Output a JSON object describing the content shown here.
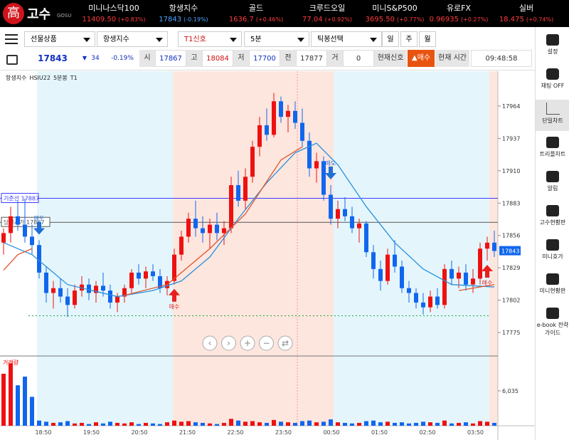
{
  "header": {
    "logo_mark": "高",
    "logo_text": "고수",
    "logo_sub": "GOSU",
    "tickers": [
      {
        "name": "미니나스닥100",
        "price": "11409.50",
        "change": "(+0.83%)"
      },
      {
        "name": "항생지수",
        "price": "17843",
        "change": "(-0.19%)"
      },
      {
        "name": "골드",
        "price": "1636.7",
        "change": "(+0.46%)"
      },
      {
        "name": "크루드오일",
        "price": "77.04",
        "change": "(+0.92%)"
      },
      {
        "name": "미니S&P500",
        "price": "3695.50",
        "change": "(+0.77%)"
      },
      {
        "name": "유로FX",
        "price": "0.96935",
        "change": "(+0.27%)"
      },
      {
        "name": "실버",
        "price": "18.475",
        "change": "(+0.74%)"
      }
    ]
  },
  "toolbar": {
    "selectors": [
      "선물상품",
      "항생지수",
      "T1신호",
      "5분",
      "틱봉선택"
    ],
    "periods": [
      "일",
      "주",
      "월"
    ],
    "quote": {
      "price": "17843",
      "change": "34",
      "change_pct": "-0.19%",
      "items": [
        {
          "label": "시",
          "value": "17867"
        },
        {
          "label": "고",
          "value": "18084"
        },
        {
          "label": "저",
          "value": "17700"
        },
        {
          "label": "전",
          "value": "17877"
        },
        {
          "label": "거",
          "value": "0"
        }
      ],
      "signal_label": "현재신호",
      "signal": "매수",
      "time_label": "현재 시간",
      "time": "09:48:58"
    }
  },
  "sidebar": [
    "설정",
    "채팅 OFF",
    "단일차트",
    "트리플차트",
    "알림",
    "고수현황판",
    "미니호가",
    "미니현황판",
    "e-book 전략가이드"
  ],
  "chart_data": {
    "type": "candlestick",
    "title": "항생지수",
    "symbol": "HSIU22",
    "interval": "5분봉",
    "signal_name": "T1",
    "ylim": [
      17755.4,
      17993.1
    ],
    "yticks": [
      17964,
      17937,
      17910,
      17883,
      17856,
      17829,
      17802,
      17775
    ],
    "last_price": 17843,
    "ref_lines": [
      {
        "label": "기준선 17887",
        "value": 17887,
        "color": "#3b3bff"
      },
      {
        "label": "당일시가 17867",
        "value": 17867,
        "color": "#555555"
      }
    ],
    "support_line": 17789,
    "up_color": "#ee1111",
    "down_color": "#1166ee",
    "candles": [
      [
        17850,
        17862,
        17840,
        17858
      ],
      [
        17858,
        17880,
        17850,
        17872
      ],
      [
        17872,
        17885,
        17860,
        17865
      ],
      [
        17865,
        17887,
        17850,
        17855
      ],
      [
        17855,
        17865,
        17840,
        17848
      ],
      [
        17848,
        17852,
        17820,
        17825
      ],
      [
        17825,
        17830,
        17800,
        17808
      ],
      [
        17808,
        17818,
        17795,
        17812
      ],
      [
        17812,
        17820,
        17800,
        17805
      ],
      [
        17805,
        17812,
        17788,
        17798
      ],
      [
        17798,
        17815,
        17795,
        17810
      ],
      [
        17810,
        17822,
        17805,
        17815
      ],
      [
        17815,
        17820,
        17802,
        17808
      ],
      [
        17808,
        17818,
        17800,
        17814
      ],
      [
        17814,
        17825,
        17805,
        17810
      ],
      [
        17810,
        17815,
        17795,
        17800
      ],
      [
        17800,
        17808,
        17792,
        17805
      ],
      [
        17805,
        17815,
        17800,
        17812
      ],
      [
        17812,
        17828,
        17808,
        17825
      ],
      [
        17825,
        17832,
        17815,
        17820
      ],
      [
        17820,
        17830,
        17812,
        17826
      ],
      [
        17826,
        17832,
        17818,
        17822
      ],
      [
        17822,
        17828,
        17808,
        17812
      ],
      [
        17812,
        17822,
        17806,
        17818
      ],
      [
        17818,
        17845,
        17815,
        17840
      ],
      [
        17840,
        17860,
        17835,
        17855
      ],
      [
        17855,
        17875,
        17850,
        17870
      ],
      [
        17870,
        17885,
        17855,
        17862
      ],
      [
        17862,
        17872,
        17850,
        17858
      ],
      [
        17858,
        17870,
        17845,
        17865
      ],
      [
        17865,
        17875,
        17852,
        17858
      ],
      [
        17858,
        17868,
        17848,
        17862
      ],
      [
        17862,
        17905,
        17858,
        17898
      ],
      [
        17898,
        17910,
        17880,
        17885
      ],
      [
        17885,
        17912,
        17878,
        17905
      ],
      [
        17905,
        17935,
        17900,
        17930
      ],
      [
        17930,
        17955,
        17922,
        17948
      ],
      [
        17948,
        17962,
        17935,
        17940
      ],
      [
        17940,
        17975,
        17938,
        17968
      ],
      [
        17968,
        17972,
        17950,
        17955
      ],
      [
        17955,
        17965,
        17942,
        17960
      ],
      [
        17960,
        17968,
        17945,
        17950
      ],
      [
        17950,
        17962,
        17930,
        17935
      ],
      [
        17935,
        17942,
        17905,
        17912
      ],
      [
        17912,
        17925,
        17900,
        17918
      ],
      [
        17918,
        17922,
        17885,
        17890
      ],
      [
        17890,
        17898,
        17865,
        17870
      ],
      [
        17870,
        17885,
        17862,
        17878
      ],
      [
        17878,
        17888,
        17868,
        17872
      ],
      [
        17872,
        17880,
        17858,
        17862
      ],
      [
        17862,
        17870,
        17850,
        17866
      ],
      [
        17866,
        17868,
        17838,
        17842
      ],
      [
        17842,
        17848,
        17820,
        17828
      ],
      [
        17828,
        17835,
        17810,
        17818
      ],
      [
        17818,
        17845,
        17815,
        17840
      ],
      [
        17840,
        17852,
        17825,
        17830
      ],
      [
        17830,
        17835,
        17808,
        17812
      ],
      [
        17812,
        17818,
        17800,
        17808
      ],
      [
        17808,
        17812,
        17795,
        17800
      ],
      [
        17800,
        17808,
        17790,
        17796
      ],
      [
        17796,
        17810,
        17792,
        17805
      ],
      [
        17805,
        17812,
        17795,
        17798
      ],
      [
        17798,
        17832,
        17795,
        17828
      ],
      [
        17828,
        17835,
        17815,
        17820
      ],
      [
        17820,
        17830,
        17812,
        17825
      ],
      [
        17825,
        17832,
        17810,
        17815
      ],
      [
        17815,
        17828,
        17808,
        17820
      ],
      [
        17820,
        17850,
        17815,
        17845
      ],
      [
        17845,
        17855,
        17835,
        17850
      ],
      [
        17850,
        17860,
        17838,
        17843
      ]
    ],
    "ma_series": [
      {
        "color": "#2a8fdc",
        "x": [
          0,
          4,
          9,
          16,
          21,
          25,
          29,
          33,
          37,
          41,
          44,
          47,
          51,
          55,
          59,
          63,
          69
        ],
        "values": [
          17850,
          17840,
          17815,
          17805,
          17810,
          17818,
          17838,
          17870,
          17900,
          17925,
          17933,
          17915,
          17880,
          17850,
          17828,
          17815,
          17813
        ]
      },
      {
        "color": "#e0542a",
        "x": [
          0,
          2,
          4,
          10,
          17,
          23,
          29,
          34,
          39,
          42,
          50,
          64,
          66,
          69
        ],
        "values": [
          17827,
          17840,
          17845,
          null,
          17806,
          17815,
          17845,
          17874,
          17919,
          17930,
          null,
          17810,
          17812,
          17815
        ]
      }
    ],
    "volume_label": "거래량",
    "volume_ylim": [
      0,
      12070
    ],
    "volume_ticks": [
      {
        "value": 6035,
        "label": "6,035"
      }
    ],
    "volumes": [
      9000,
      10800,
      7000,
      8500,
      5000,
      900,
      700,
      500,
      600,
      800,
      400,
      500,
      300,
      600,
      400,
      700,
      500,
      400,
      600,
      300,
      500,
      400,
      300,
      600,
      900,
      700,
      800,
      600,
      500,
      400,
      300,
      500,
      1200,
      900,
      700,
      800,
      600,
      500,
      1000,
      700,
      600,
      500,
      800,
      900,
      600,
      700,
      1100,
      600,
      500,
      400,
      500,
      800,
      900,
      600,
      700,
      500,
      600,
      400,
      500,
      700,
      600,
      500,
      900,
      400,
      500,
      600,
      400,
      800,
      700,
      500
    ],
    "x_labels": [
      "18:50",
      "19:50",
      "20:50",
      "21:50",
      "22:50",
      "23:50",
      "00:50",
      "01:50",
      "02:50",
      "03:50"
    ],
    "signals": [
      {
        "label": "매도",
        "index": 5,
        "side": "sell"
      },
      {
        "label": "매수",
        "index": 24,
        "side": "buy"
      },
      {
        "label": "매도",
        "index": 46,
        "side": "sell"
      },
      {
        "label": "매수",
        "index": 68,
        "side": "buy"
      }
    ]
  }
}
